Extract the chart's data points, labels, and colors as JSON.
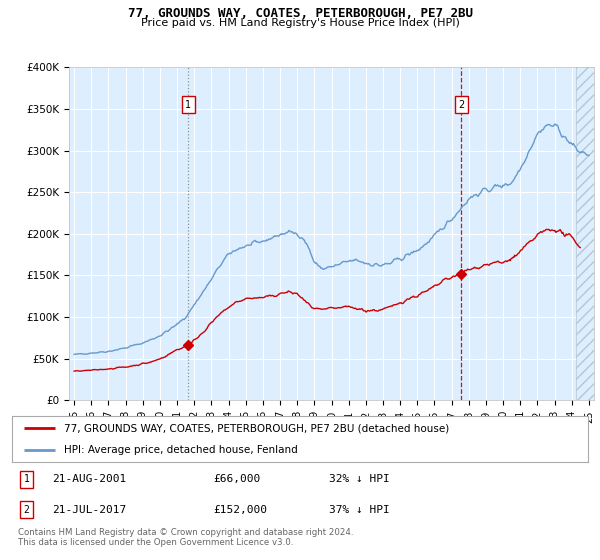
{
  "title": "77, GROUNDS WAY, COATES, PETERBOROUGH, PE7 2BU",
  "subtitle": "Price paid vs. HM Land Registry's House Price Index (HPI)",
  "legend_line1": "77, GROUNDS WAY, COATES, PETERBOROUGH, PE7 2BU (detached house)",
  "legend_line2": "HPI: Average price, detached house, Fenland",
  "annotation1": {
    "num": "1",
    "date": "21-AUG-2001",
    "price": "£66,000",
    "pct": "32% ↓ HPI"
  },
  "annotation2": {
    "num": "2",
    "date": "21-JUL-2017",
    "price": "£152,000",
    "pct": "37% ↓ HPI"
  },
  "footer": "Contains HM Land Registry data © Crown copyright and database right 2024.\nThis data is licensed under the Open Government Licence v3.0.",
  "red_color": "#cc0000",
  "blue_color": "#6699cc",
  "plot_bg": "#ddeeff",
  "ylim": [
    0,
    400000
  ],
  "yticks": [
    0,
    50000,
    100000,
    150000,
    200000,
    250000,
    300000,
    350000,
    400000
  ],
  "ytick_labels": [
    "£0",
    "£50K",
    "£100K",
    "£150K",
    "£200K",
    "£250K",
    "£300K",
    "£350K",
    "£400K"
  ],
  "vline1_x": 2001.64,
  "vline2_x": 2017.55,
  "sale1_x": 2001.64,
  "sale1_y": 66000,
  "sale2_x": 2017.55,
  "sale2_y": 152000,
  "xmin": 1994.7,
  "xmax": 2025.3,
  "hatch_start": 2024.25
}
